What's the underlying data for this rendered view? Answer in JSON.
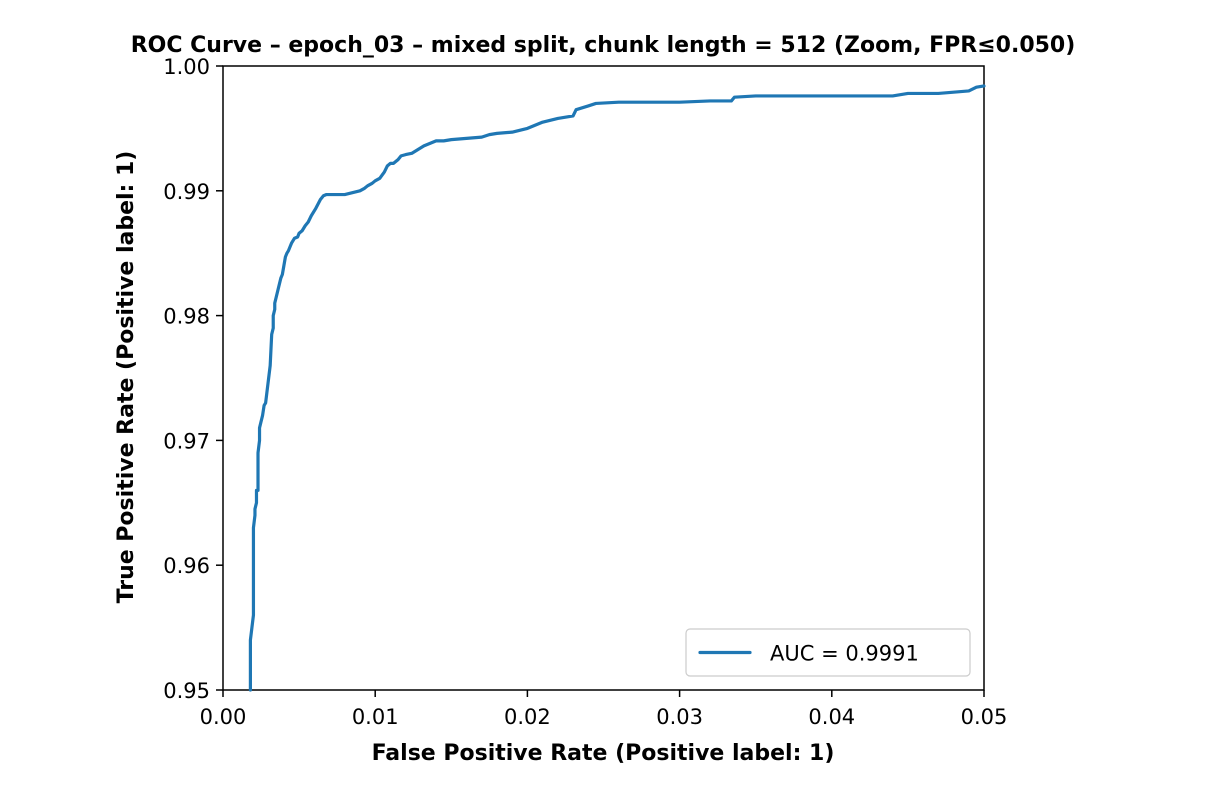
{
  "chart_data": {
    "type": "line",
    "title": "ROC Curve – epoch_03 – mixed split, chunk length = 512 (Zoom, FPR≤0.050)",
    "xlabel": "False Positive Rate (Positive label: 1)",
    "ylabel": "True Positive Rate (Positive label: 1)",
    "xlim": [
      0.0,
      0.05
    ],
    "ylim": [
      0.95,
      1.0
    ],
    "xticks": [
      "0.00",
      "0.01",
      "0.02",
      "0.03",
      "0.04",
      "0.05"
    ],
    "yticks": [
      "0.95",
      "0.96",
      "0.97",
      "0.98",
      "0.99",
      "1.00"
    ],
    "grid": false,
    "legend_position": "lower-right",
    "series": [
      {
        "name": "AUC = 0.9991",
        "color": "#1f77b4",
        "x": [
          0.0018,
          0.0018,
          0.0019,
          0.002,
          0.002,
          0.0021,
          0.0021,
          0.0022,
          0.0022,
          0.0023,
          0.0023,
          0.0024,
          0.0024,
          0.0025,
          0.0026,
          0.0027,
          0.0028,
          0.0029,
          0.003,
          0.0031,
          0.0032,
          0.0033,
          0.0033,
          0.0034,
          0.0034,
          0.0035,
          0.0036,
          0.0037,
          0.0038,
          0.0039,
          0.004,
          0.0041,
          0.0042,
          0.0043,
          0.0044,
          0.0045,
          0.0046,
          0.0047,
          0.0049,
          0.005,
          0.0052,
          0.0054,
          0.0056,
          0.0058,
          0.0061,
          0.0064,
          0.0066,
          0.0068,
          0.007,
          0.0072,
          0.0075,
          0.0078,
          0.008,
          0.009,
          0.0093,
          0.0095,
          0.0098,
          0.01,
          0.0103,
          0.0106,
          0.0108,
          0.011,
          0.0112,
          0.0115,
          0.0117,
          0.012,
          0.0124,
          0.0128,
          0.0132,
          0.0136,
          0.014,
          0.0145,
          0.015,
          0.016,
          0.017,
          0.0175,
          0.018,
          0.019,
          0.02,
          0.021,
          0.022,
          0.023,
          0.0232,
          0.024,
          0.0245,
          0.026,
          0.028,
          0.03,
          0.032,
          0.0334,
          0.0336,
          0.035,
          0.04,
          0.044,
          0.045,
          0.047,
          0.048,
          0.049,
          0.0495,
          0.05
        ],
        "y": [
          0.95,
          0.954,
          0.955,
          0.956,
          0.963,
          0.964,
          0.9645,
          0.965,
          0.966,
          0.966,
          0.969,
          0.97,
          0.971,
          0.9715,
          0.972,
          0.9728,
          0.973,
          0.974,
          0.975,
          0.976,
          0.9785,
          0.979,
          0.98,
          0.9805,
          0.981,
          0.9815,
          0.982,
          0.9825,
          0.983,
          0.9833,
          0.984,
          0.9847,
          0.985,
          0.9852,
          0.9855,
          0.9858,
          0.986,
          0.9862,
          0.9863,
          0.9866,
          0.9868,
          0.9872,
          0.9875,
          0.988,
          0.9886,
          0.9893,
          0.9896,
          0.9897,
          0.9897,
          0.9897,
          0.9897,
          0.9897,
          0.9897,
          0.99,
          0.9902,
          0.9904,
          0.9906,
          0.9908,
          0.991,
          0.9915,
          0.992,
          0.9922,
          0.9922,
          0.9925,
          0.9928,
          0.9929,
          0.993,
          0.9933,
          0.9936,
          0.9938,
          0.994,
          0.994,
          0.9941,
          0.9942,
          0.9943,
          0.9945,
          0.9946,
          0.9947,
          0.995,
          0.9955,
          0.9958,
          0.996,
          0.9965,
          0.9968,
          0.997,
          0.9971,
          0.9971,
          0.9971,
          0.9972,
          0.9972,
          0.9975,
          0.9976,
          0.9976,
          0.9976,
          0.9978,
          0.9978,
          0.9979,
          0.998,
          0.9983,
          0.9984
        ]
      }
    ]
  }
}
